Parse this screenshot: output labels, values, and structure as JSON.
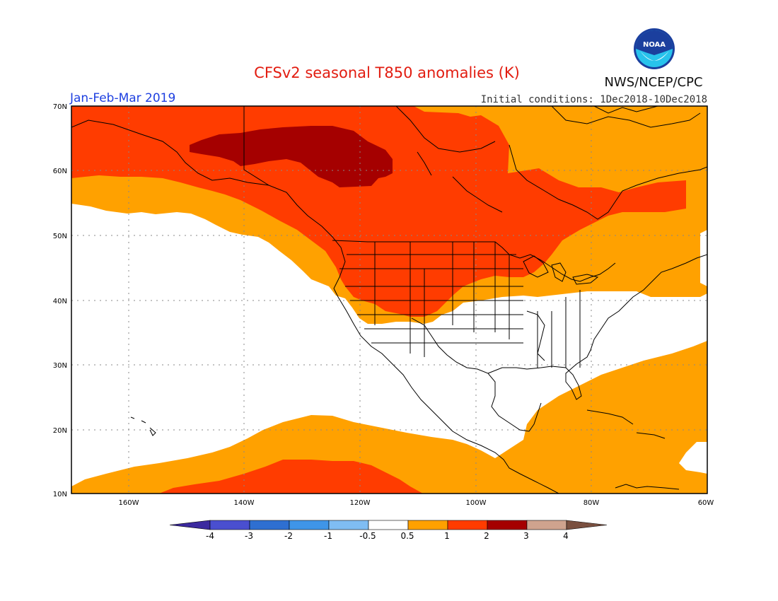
{
  "title": "CFSv2 seasonal T850 anomalies (K)",
  "agency": "NWS/NCEP/CPC",
  "logo_text": "NOAA",
  "period": "Jan-Feb-Mar 2019",
  "initial_conditions": "Initial conditions: 1Dec2018-10Dec2018",
  "lat_labels": [
    "70N",
    "60N",
    "50N",
    "40N",
    "30N",
    "20N",
    "10N"
  ],
  "lon_labels": [
    "160W",
    "140W",
    "120W",
    "100W",
    "80W",
    "60W"
  ],
  "colorbar": {
    "labels": [
      "-4",
      "-3",
      "-2",
      "-1",
      "-0.5",
      "0.5",
      "1",
      "2",
      "3",
      "4"
    ],
    "colors": [
      "#3c2a9f",
      "#4a4fd0",
      "#2e6fd1",
      "#3f95e8",
      "#7fbdf3",
      "#ffffff",
      "#ffa100",
      "#ff3c00",
      "#a50000",
      "#cfa38e",
      "#7a5040"
    ]
  },
  "colors": {
    "anom_0_5_1": "#ffa100",
    "anom_1_2": "#ff3c00",
    "anom_2_3": "#a50000",
    "title_red": "#e21c10",
    "period_blue": "#1d3fe0"
  }
}
